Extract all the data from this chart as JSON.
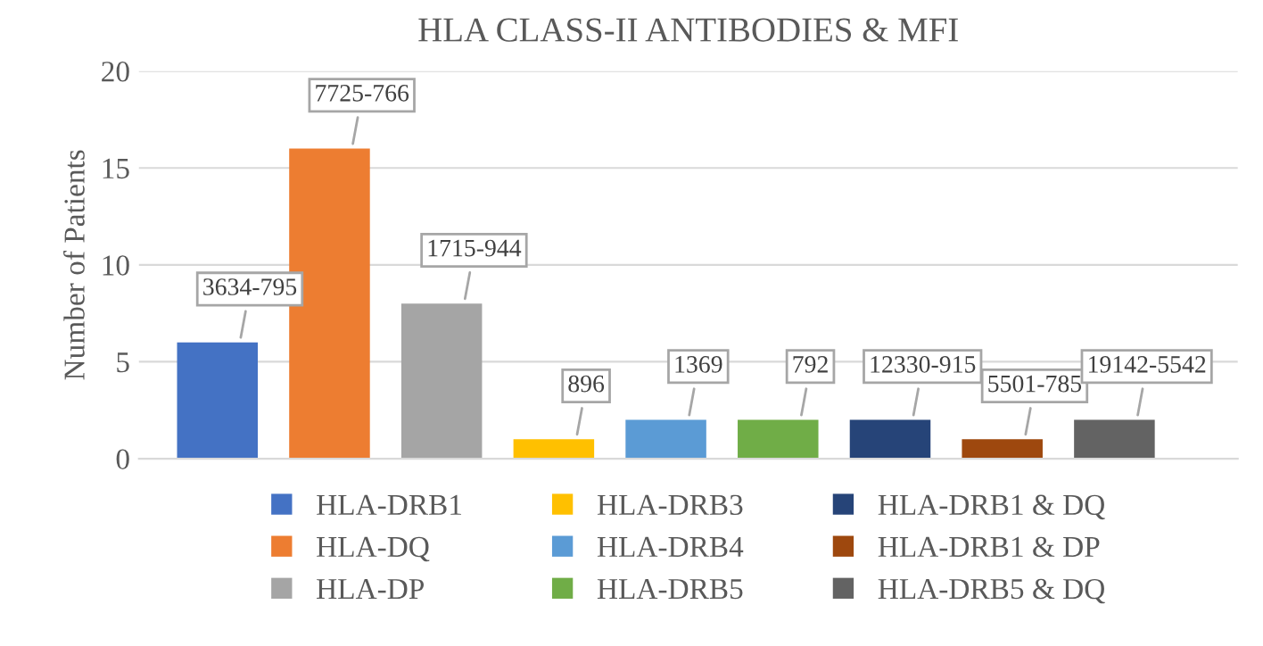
{
  "chart_data": {
    "type": "bar",
    "title": "HLA CLASS-II ANTIBODIES & MFI",
    "ylabel": "Number of Patients",
    "categories": [
      null,
      null,
      null,
      null,
      null,
      null,
      null,
      null,
      null
    ],
    "series": [
      {
        "name": "HLA-DRB1",
        "color": "#4472c4",
        "values": [
          6,
          null,
          null,
          null,
          null,
          null,
          null,
          null,
          null
        ]
      },
      {
        "name": "HLA-DQ",
        "color": "#ed7d31",
        "values": [
          null,
          16,
          null,
          null,
          null,
          null,
          null,
          null,
          null
        ]
      },
      {
        "name": "HLA-DP",
        "color": "#a5a5a5",
        "values": [
          null,
          null,
          8,
          null,
          null,
          null,
          null,
          null,
          null
        ]
      },
      {
        "name": "HLA-DRB3",
        "color": "#ffc000",
        "values": [
          null,
          null,
          null,
          1,
          null,
          null,
          null,
          null,
          null
        ]
      },
      {
        "name": "HLA-DRB4",
        "color": "#5b9bd5",
        "values": [
          null,
          null,
          null,
          null,
          2,
          null,
          null,
          null,
          null
        ]
      },
      {
        "name": "HLA-DRB5",
        "color": "#70ad47",
        "values": [
          null,
          null,
          null,
          null,
          null,
          2,
          null,
          null,
          null
        ]
      },
      {
        "name": "HLA-DRB1 & DQ",
        "color": "#264478",
        "values": [
          null,
          null,
          null,
          null,
          null,
          null,
          2,
          null,
          null
        ]
      },
      {
        "name": "HLA-DRB1 & DP",
        "color": "#9e480e",
        "values": [
          null,
          null,
          null,
          null,
          null,
          null,
          null,
          1,
          null
        ]
      },
      {
        "name": "HLA-DRB5 & DQ",
        "color": "#636363",
        "values": [
          null,
          null,
          null,
          null,
          null,
          null,
          null,
          null,
          2
        ]
      }
    ],
    "annotations": [
      {
        "text": "3634-795",
        "y": 6
      },
      {
        "text": "7725-766",
        "y": 16
      },
      {
        "text": "1715-944",
        "y": 8
      },
      {
        "text": "896",
        "y": 1
      },
      {
        "text": "1369",
        "y": 2
      },
      {
        "text": "792",
        "y": 2
      },
      {
        "text": "12330-915",
        "y": 2
      },
      {
        "text": "5501-785",
        "y": 1
      },
      {
        "text": "19142-5542",
        "y": 2
      }
    ],
    "ylim": [
      0,
      20
    ],
    "yticks": [
      0,
      5,
      10,
      15,
      20
    ],
    "grid": "y",
    "legend": "bottom",
    "tick_labels": "y"
  }
}
